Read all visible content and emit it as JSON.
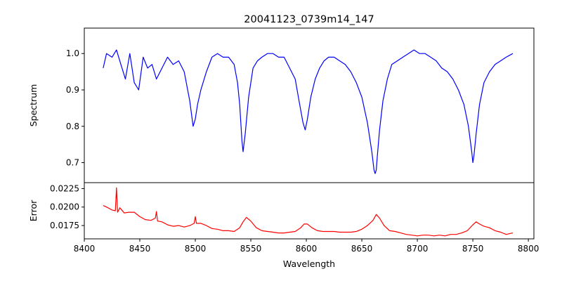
{
  "chart_data": [
    {
      "type": "line",
      "title": "20041123_0739m14_147",
      "xlabel": "",
      "ylabel": "Spectrum",
      "xlim": [
        8400,
        8805
      ],
      "ylim": [
        0.645,
        1.07
      ],
      "yticks": [
        0.7,
        0.8,
        0.9,
        1.0
      ],
      "ytick_labels": [
        "0.7",
        "0.8",
        "0.9",
        "1.0"
      ],
      "grid": false,
      "series": [
        {
          "color": "#0000ff",
          "x": [
            8417,
            8420,
            8425,
            8429,
            8433,
            8437,
            8441,
            8445,
            8449,
            8453,
            8457,
            8461,
            8465,
            8470,
            8475,
            8480,
            8485,
            8490,
            8495,
            8498,
            8500,
            8502,
            8505,
            8510,
            8515,
            8520,
            8525,
            8530,
            8535,
            8538,
            8540,
            8542,
            8543,
            8545,
            8548,
            8552,
            8556,
            8560,
            8565,
            8570,
            8575,
            8580,
            8585,
            8590,
            8594,
            8597,
            8599,
            8601,
            8604,
            8608,
            8612,
            8616,
            8620,
            8625,
            8630,
            8635,
            8640,
            8645,
            8650,
            8655,
            8659,
            8661,
            8662,
            8663,
            8664,
            8666,
            8669,
            8673,
            8677,
            8682,
            8687,
            8692,
            8697,
            8702,
            8707,
            8712,
            8717,
            8722,
            8727,
            8732,
            8737,
            8742,
            8746,
            8749,
            8750,
            8751,
            8753,
            8756,
            8760,
            8765,
            8770,
            8775,
            8780,
            8786
          ],
          "y": [
            0.96,
            1.0,
            0.99,
            1.01,
            0.97,
            0.93,
            1.0,
            0.92,
            0.9,
            0.99,
            0.96,
            0.97,
            0.93,
            0.96,
            0.99,
            0.97,
            0.98,
            0.95,
            0.87,
            0.8,
            0.82,
            0.86,
            0.9,
            0.95,
            0.99,
            1.0,
            0.99,
            0.99,
            0.97,
            0.92,
            0.86,
            0.76,
            0.73,
            0.78,
            0.88,
            0.96,
            0.98,
            0.99,
            1.0,
            1.0,
            0.99,
            0.99,
            0.96,
            0.93,
            0.86,
            0.81,
            0.79,
            0.82,
            0.88,
            0.93,
            0.96,
            0.98,
            0.99,
            0.99,
            0.98,
            0.97,
            0.95,
            0.92,
            0.88,
            0.81,
            0.73,
            0.68,
            0.67,
            0.68,
            0.72,
            0.79,
            0.87,
            0.93,
            0.97,
            0.98,
            0.99,
            1.0,
            1.01,
            1.0,
            1.0,
            0.99,
            0.98,
            0.96,
            0.95,
            0.93,
            0.9,
            0.86,
            0.8,
            0.73,
            0.7,
            0.72,
            0.78,
            0.86,
            0.92,
            0.95,
            0.97,
            0.98,
            0.99,
            1.0
          ]
        }
      ]
    },
    {
      "type": "line",
      "title": "",
      "xlabel": "Wavelength",
      "ylabel": "Error",
      "xlim": [
        8400,
        8805
      ],
      "ylim": [
        0.0157,
        0.0233
      ],
      "xticks": [
        8400,
        8450,
        8500,
        8550,
        8600,
        8650,
        8700,
        8750,
        8800
      ],
      "xtick_labels": [
        "8400",
        "8450",
        "8500",
        "8550",
        "8600",
        "8650",
        "8700",
        "8750",
        "8800"
      ],
      "yticks": [
        0.0175,
        0.02,
        0.0225
      ],
      "ytick_labels": [
        "0.0175",
        "0.0200",
        "0.0225"
      ],
      "grid": false,
      "series": [
        {
          "color": "#ff0000",
          "x": [
            8417,
            8420,
            8425,
            8428,
            8429,
            8430,
            8432,
            8436,
            8440,
            8445,
            8450,
            8455,
            8460,
            8464,
            8465,
            8466,
            8470,
            8475,
            8480,
            8485,
            8490,
            8495,
            8499,
            8500,
            8501,
            8505,
            8510,
            8515,
            8520,
            8525,
            8530,
            8535,
            8540,
            8543,
            8546,
            8550,
            8555,
            8560,
            8565,
            8570,
            8575,
            8580,
            8585,
            8590,
            8595,
            8598,
            8601,
            8605,
            8610,
            8615,
            8620,
            8625,
            8630,
            8635,
            8640,
            8645,
            8650,
            8655,
            8660,
            8663,
            8666,
            8670,
            8675,
            8680,
            8685,
            8690,
            8695,
            8700,
            8705,
            8710,
            8715,
            8720,
            8725,
            8730,
            8735,
            8740,
            8745,
            8750,
            8753,
            8756,
            8760,
            8765,
            8770,
            8775,
            8780,
            8786
          ],
          "y": [
            0.0202,
            0.02,
            0.0196,
            0.0195,
            0.0226,
            0.0193,
            0.0199,
            0.0192,
            0.0193,
            0.0193,
            0.0187,
            0.0183,
            0.0182,
            0.0185,
            0.0194,
            0.0181,
            0.018,
            0.0176,
            0.0174,
            0.0175,
            0.0173,
            0.0175,
            0.0178,
            0.0187,
            0.0178,
            0.0178,
            0.0175,
            0.0171,
            0.017,
            0.0168,
            0.0168,
            0.0167,
            0.0172,
            0.018,
            0.0186,
            0.0181,
            0.0172,
            0.0168,
            0.0167,
            0.0166,
            0.0165,
            0.0165,
            0.0166,
            0.0167,
            0.0172,
            0.0177,
            0.0177,
            0.0172,
            0.0168,
            0.0167,
            0.0167,
            0.0167,
            0.0166,
            0.0166,
            0.0166,
            0.0167,
            0.017,
            0.0175,
            0.0182,
            0.019,
            0.0185,
            0.0175,
            0.0168,
            0.0167,
            0.0165,
            0.0163,
            0.0162,
            0.0161,
            0.0162,
            0.0162,
            0.0161,
            0.0162,
            0.0161,
            0.0163,
            0.0163,
            0.0165,
            0.0168,
            0.0176,
            0.018,
            0.0177,
            0.0174,
            0.0172,
            0.0168,
            0.0166,
            0.0163,
            0.0165
          ]
        }
      ]
    }
  ]
}
